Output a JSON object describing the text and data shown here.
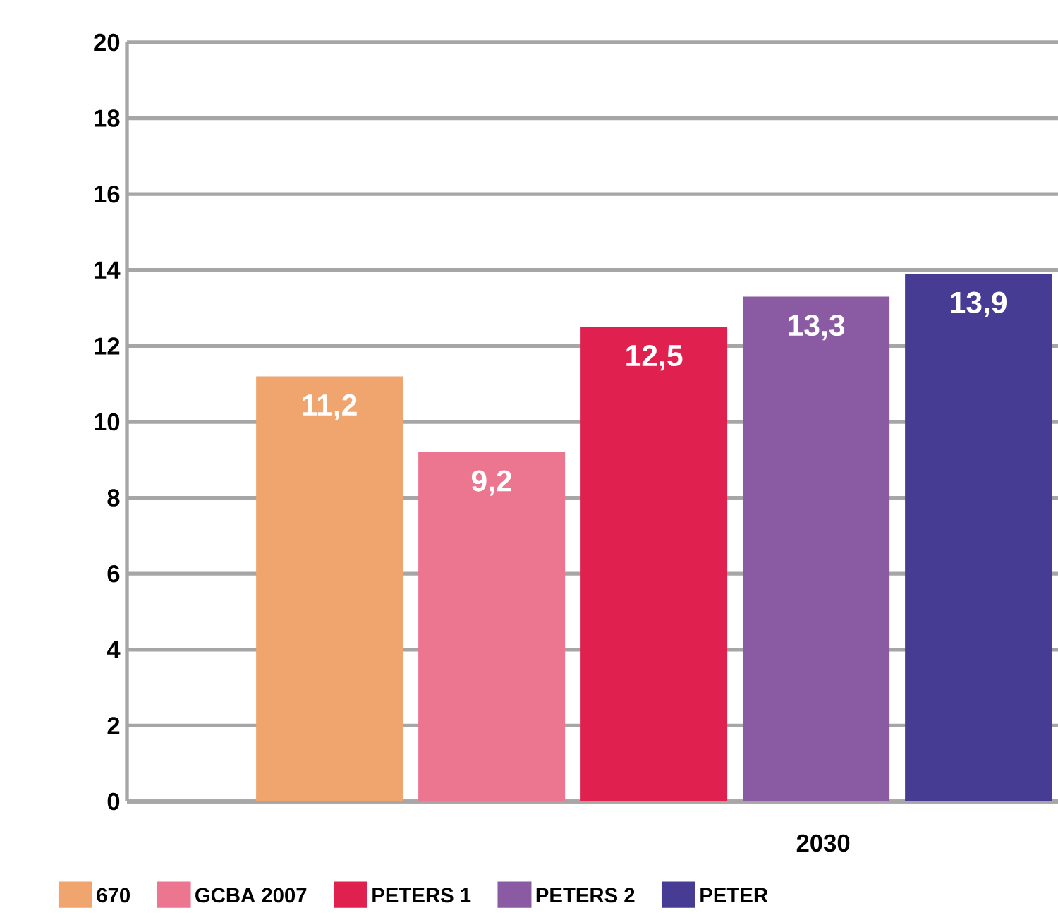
{
  "chart_data": {
    "type": "bar",
    "categories": [
      "2030"
    ],
    "series": [
      {
        "name": "670",
        "color": "#f0a46e",
        "values": [
          11.2
        ],
        "value_labels": [
          "11,2"
        ]
      },
      {
        "name": "GCBA 2007",
        "color": "#ec7590",
        "values": [
          9.2
        ],
        "value_labels": [
          "9,2"
        ]
      },
      {
        "name": "PETERS 1",
        "color": "#e0204f",
        "values": [
          12.5
        ],
        "value_labels": [
          "12,5"
        ]
      },
      {
        "name": "PETERS 2",
        "color": "#8a5aa3",
        "values": [
          13.3
        ],
        "value_labels": [
          "13,3"
        ]
      },
      {
        "name": "PETER",
        "color": "#463c94",
        "values": [
          13.9
        ],
        "value_labels": [
          "13,9"
        ]
      }
    ],
    "ylim": [
      0,
      20
    ],
    "yticks": [
      0,
      2,
      4,
      6,
      8,
      10,
      12,
      14,
      16,
      18,
      20
    ],
    "grid": "y",
    "legend": "bottom"
  }
}
